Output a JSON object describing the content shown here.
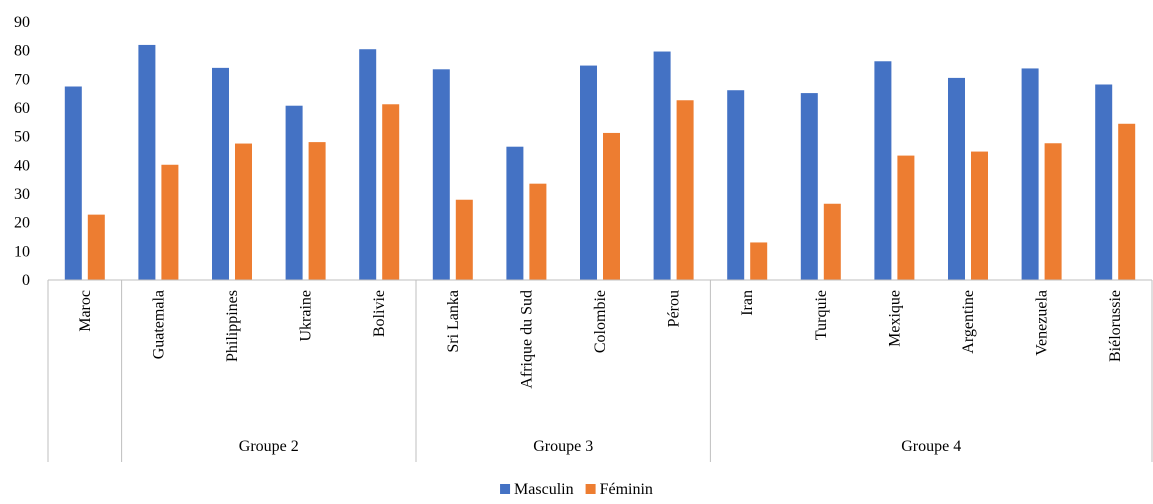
{
  "chart_data": {
    "type": "bar",
    "categories": [
      "Maroc",
      "Guatemala",
      "Philippines",
      "Ukraine",
      "Bolivie",
      "Sri Lanka",
      "Afrique du Sud",
      "Colombie",
      "Pérou",
      "Iran",
      "Turquie",
      "Mexique",
      "Argentine",
      "Venezuela",
      "Biélorussie"
    ],
    "groups": [
      {
        "label": "",
        "count": 1
      },
      {
        "label": "Groupe 2",
        "count": 4
      },
      {
        "label": "Groupe 3",
        "count": 4
      },
      {
        "label": "Groupe 4",
        "count": 6
      }
    ],
    "series": [
      {
        "name": "Masculin",
        "color": "#4472C4",
        "values": [
          67.5,
          82,
          74,
          60.8,
          80.5,
          73.5,
          46.5,
          74.8,
          79.7,
          66.2,
          65.2,
          76.3,
          70.5,
          73.8,
          68.2
        ]
      },
      {
        "name": "Féminin",
        "color": "#ED7D31",
        "values": [
          22.8,
          40.2,
          47.6,
          48.1,
          61.3,
          28,
          33.6,
          51.3,
          62.7,
          13.1,
          26.6,
          43.4,
          44.8,
          47.7,
          54.5
        ]
      }
    ],
    "yticks": [
      0,
      10,
      20,
      30,
      40,
      50,
      60,
      70,
      80,
      90
    ],
    "ylim": [
      0,
      90
    ],
    "grid": false,
    "legend_position": "bottom-center"
  }
}
